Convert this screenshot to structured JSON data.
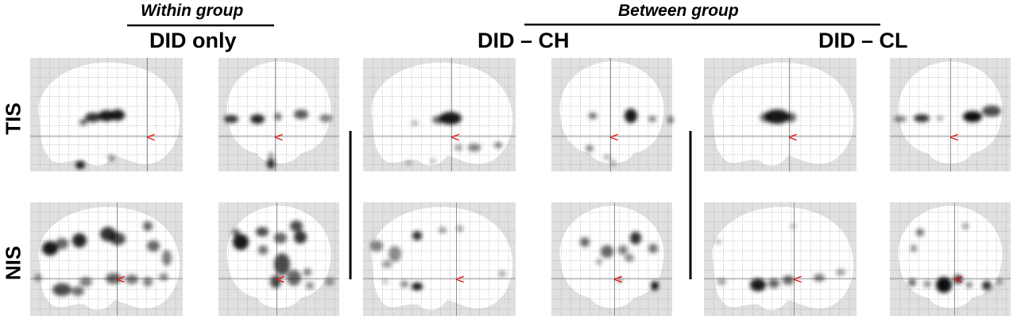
{
  "headers": {
    "within_group": "Within group",
    "between_group": "Between group",
    "did_only": "DID only",
    "did_ch": "DID – CH",
    "did_cl": "DID – CL"
  },
  "rows": {
    "tis": "TIS",
    "nis": "NIS"
  },
  "colors": {
    "panel_bg": "#e0e0e0",
    "brain": "#ffffff",
    "grid": "#9a9a9a",
    "blob": "#000000",
    "marker": "#e01010"
  },
  "marker_glyph": "<"
}
